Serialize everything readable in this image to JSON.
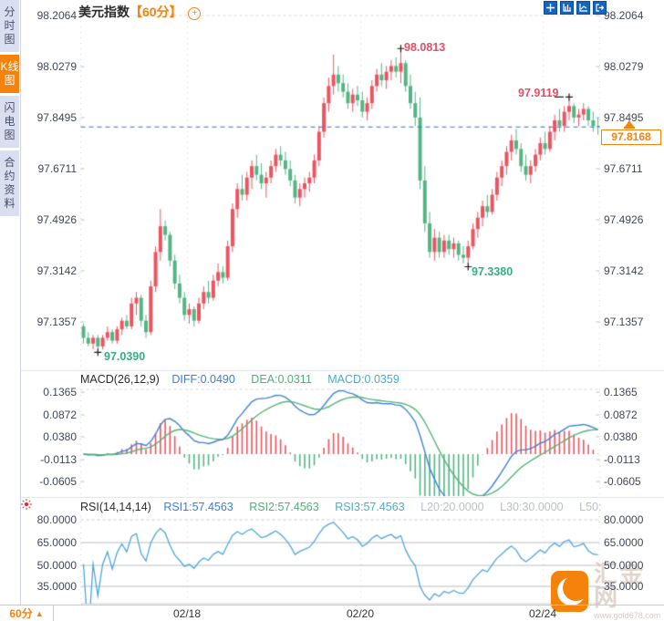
{
  "sidebar": {
    "items": [
      {
        "label": "分时图",
        "active": false
      },
      {
        "label": "K线图",
        "active": true
      },
      {
        "label": "闪电图",
        "active": false
      },
      {
        "label": "合约资料",
        "active": false
      }
    ]
  },
  "header": {
    "symbol": "美元指数",
    "period": "【60分】",
    "add_icon": "⊕"
  },
  "toolbar": {
    "buttons": [
      "pan",
      "axis-scale",
      "axis-style",
      "exit-fullscreen"
    ]
  },
  "price_axis": {
    "labels": [
      "98.2064",
      "98.0279",
      "97.8495",
      "97.6711",
      "97.4926",
      "97.3142",
      "97.1357"
    ],
    "current": "97.8168"
  },
  "annotations": {
    "high": "98.0813",
    "high2": "97.9119",
    "low": "97.0390",
    "low2": "97.3380"
  },
  "macd": {
    "name": "MACD(26,12,9)",
    "diff_label": "DIFF:0.0490",
    "dea_label": "DEA:0.0311",
    "macd_label": "MACD:0.0359",
    "axis": [
      "0.1365",
      "0.0872",
      "0.0380",
      "-0.0113",
      "-0.0605"
    ]
  },
  "rsi": {
    "name": "RSI(14,14,14)",
    "rsi1": "RSI1:57.4563",
    "rsi2": "RSI2:57.4563",
    "rsi3": "RSI3:57.4563",
    "l20": "L20:20.0000",
    "l30": "L30:30.0000",
    "l50": "L50:",
    "axis": [
      "80.0000",
      "65.0000",
      "50.0000",
      "35.0000"
    ]
  },
  "time_axis": {
    "period": "60分",
    "arrow": "▲",
    "labels": [
      "02/18",
      "02/20",
      "02/24"
    ]
  },
  "watermark": {
    "name": "汇金网",
    "url": "www.gold678.com"
  },
  "colors": {
    "up": "#ec5460",
    "down": "#54b584",
    "diff_line": "#3f83d6",
    "dea_line": "#55b377",
    "rsi_line": "#4ea6dc",
    "price_line": "#1f7ad4",
    "accent": "#f5820b",
    "tab_bg": "#d9dff0",
    "annotation_up": "#e25064",
    "annotation_down": "#33af85"
  },
  "chart_data": {
    "type": "candlestick",
    "title": "美元指数 60分 K线图",
    "current_price": 97.8168,
    "y_axis_ticks": [
      98.2064,
      98.0279,
      97.8495,
      97.6711,
      97.4926,
      97.3142,
      97.1357
    ],
    "x_axis_dates": [
      "02/18",
      "02/20",
      "02/24"
    ],
    "markers": [
      {
        "index": 3,
        "price": 97.039,
        "label": "97.0390",
        "type": "low"
      },
      {
        "index": 66,
        "price": 98.0813,
        "label": "98.0813",
        "type": "high"
      },
      {
        "index": 80,
        "price": 97.338,
        "label": "97.3380",
        "type": "low"
      },
      {
        "index": 101,
        "price": 97.9119,
        "label": "97.9119",
        "type": "high2"
      }
    ],
    "indicators": {
      "macd": {
        "params": [
          26,
          12,
          9
        ],
        "diff": 0.049,
        "dea": 0.0311,
        "macd": 0.0359,
        "axis_ticks": [
          0.1365,
          0.0872,
          0.038,
          -0.0113,
          -0.0605
        ]
      },
      "rsi": {
        "params": [
          14,
          14,
          14
        ],
        "rsi1": 57.4563,
        "rsi2": 57.4563,
        "rsi3": 57.4563,
        "levels": [
          20,
          30,
          50
        ],
        "axis_ticks": [
          80,
          65,
          50,
          35
        ]
      }
    },
    "candles": [
      [
        97.12,
        97.13,
        97.06,
        97.08
      ],
      [
        97.08,
        97.1,
        97.05,
        97.06
      ],
      [
        97.06,
        97.09,
        97.04,
        97.08
      ],
      [
        97.08,
        97.09,
        97.039,
        97.05
      ],
      [
        97.05,
        97.09,
        97.04,
        97.08
      ],
      [
        97.08,
        97.12,
        97.07,
        97.1
      ],
      [
        97.1,
        97.11,
        97.06,
        97.07
      ],
      [
        97.07,
        97.12,
        97.06,
        97.11
      ],
      [
        97.11,
        97.15,
        97.09,
        97.14
      ],
      [
        97.14,
        97.16,
        97.11,
        97.12
      ],
      [
        97.12,
        97.22,
        97.11,
        97.2
      ],
      [
        97.2,
        97.24,
        97.16,
        97.22
      ],
      [
        97.22,
        97.23,
        97.12,
        97.14
      ],
      [
        97.14,
        97.16,
        97.08,
        97.1
      ],
      [
        97.1,
        97.28,
        97.09,
        97.26
      ],
      [
        97.26,
        97.4,
        97.24,
        97.38
      ],
      [
        97.38,
        97.53,
        97.35,
        97.47
      ],
      [
        97.47,
        97.49,
        97.42,
        97.44
      ],
      [
        97.44,
        97.45,
        97.33,
        97.35
      ],
      [
        97.35,
        97.37,
        97.25,
        97.27
      ],
      [
        97.27,
        97.3,
        97.2,
        97.22
      ],
      [
        97.22,
        97.24,
        97.14,
        97.16
      ],
      [
        97.16,
        97.2,
        97.13,
        97.18
      ],
      [
        97.18,
        97.19,
        97.12,
        97.14
      ],
      [
        97.14,
        97.22,
        97.13,
        97.2
      ],
      [
        97.2,
        97.26,
        97.18,
        97.24
      ],
      [
        97.24,
        97.28,
        97.2,
        97.22
      ],
      [
        97.22,
        97.3,
        97.21,
        97.28
      ],
      [
        97.28,
        97.34,
        97.26,
        97.31
      ],
      [
        97.31,
        97.33,
        97.27,
        97.29
      ],
      [
        97.29,
        97.42,
        97.28,
        97.4
      ],
      [
        97.4,
        97.55,
        97.38,
        97.53
      ],
      [
        97.53,
        97.62,
        97.5,
        97.6
      ],
      [
        97.6,
        97.65,
        97.56,
        97.58
      ],
      [
        97.58,
        97.66,
        97.56,
        97.64
      ],
      [
        97.64,
        97.7,
        97.6,
        97.68
      ],
      [
        97.68,
        97.72,
        97.63,
        97.65
      ],
      [
        97.65,
        97.69,
        97.6,
        97.62
      ],
      [
        97.62,
        97.66,
        97.57,
        97.64
      ],
      [
        97.64,
        97.7,
        97.62,
        97.68
      ],
      [
        97.68,
        97.74,
        97.66,
        97.72
      ],
      [
        97.72,
        97.75,
        97.68,
        97.7
      ],
      [
        97.7,
        97.73,
        97.65,
        97.67
      ],
      [
        97.67,
        97.7,
        97.61,
        97.63
      ],
      [
        97.63,
        97.65,
        97.55,
        97.57
      ],
      [
        97.57,
        97.62,
        97.54,
        97.6
      ],
      [
        97.6,
        97.64,
        97.57,
        97.62
      ],
      [
        97.62,
        97.66,
        97.59,
        97.64
      ],
      [
        97.64,
        97.72,
        97.62,
        97.7
      ],
      [
        97.7,
        97.82,
        97.68,
        97.8
      ],
      [
        97.8,
        97.92,
        97.78,
        97.9
      ],
      [
        97.9,
        97.99,
        97.87,
        97.96
      ],
      [
        97.96,
        98.07,
        97.93,
        98.0
      ],
      [
        98.0,
        98.03,
        97.94,
        97.97
      ],
      [
        97.97,
        98.0,
        97.92,
        97.94
      ],
      [
        97.94,
        97.97,
        97.88,
        97.9
      ],
      [
        97.9,
        97.95,
        97.87,
        97.93
      ],
      [
        97.93,
        97.96,
        97.89,
        97.91
      ],
      [
        97.91,
        97.94,
        97.85,
        97.87
      ],
      [
        97.87,
        97.92,
        97.84,
        97.9
      ],
      [
        97.9,
        97.98,
        97.88,
        97.96
      ],
      [
        97.96,
        98.02,
        97.94,
        98.0
      ],
      [
        98.0,
        98.04,
        97.96,
        97.98
      ],
      [
        97.98,
        98.03,
        97.95,
        98.01
      ],
      [
        98.01,
        98.05,
        97.98,
        98.03
      ],
      [
        98.03,
        98.06,
        97.99,
        98.01
      ],
      [
        98.01,
        98.0813,
        97.97,
        98.04
      ],
      [
        98.04,
        98.05,
        97.94,
        97.96
      ],
      [
        97.96,
        98.0,
        97.88,
        97.9
      ],
      [
        97.9,
        97.94,
        97.82,
        97.85
      ],
      [
        97.85,
        97.92,
        97.6,
        97.63
      ],
      [
        97.63,
        97.68,
        97.45,
        97.48
      ],
      [
        97.48,
        97.52,
        97.36,
        97.38
      ],
      [
        97.38,
        97.46,
        97.35,
        97.43
      ],
      [
        97.43,
        97.45,
        97.36,
        97.38
      ],
      [
        97.38,
        97.44,
        97.36,
        97.42
      ],
      [
        97.42,
        97.44,
        97.37,
        97.39
      ],
      [
        97.39,
        97.43,
        97.36,
        97.41
      ],
      [
        97.41,
        97.42,
        97.35,
        97.37
      ],
      [
        97.37,
        97.4,
        97.34,
        97.36
      ],
      [
        97.36,
        97.42,
        97.338,
        97.4
      ],
      [
        97.4,
        97.48,
        97.39,
        97.46
      ],
      [
        97.46,
        97.52,
        97.43,
        97.5
      ],
      [
        97.5,
        97.56,
        97.47,
        97.54
      ],
      [
        97.54,
        97.58,
        97.5,
        97.52
      ],
      [
        97.52,
        97.6,
        97.51,
        97.58
      ],
      [
        97.58,
        97.66,
        97.56,
        97.64
      ],
      [
        97.64,
        97.7,
        97.61,
        97.68
      ],
      [
        97.68,
        97.75,
        97.65,
        97.73
      ],
      [
        97.73,
        97.79,
        97.7,
        97.77
      ],
      [
        97.77,
        97.81,
        97.72,
        97.74
      ],
      [
        97.74,
        97.76,
        97.66,
        97.68
      ],
      [
        97.68,
        97.72,
        97.63,
        97.65
      ],
      [
        97.65,
        97.7,
        97.62,
        97.68
      ],
      [
        97.68,
        97.74,
        97.66,
        97.72
      ],
      [
        97.72,
        97.78,
        97.7,
        97.76
      ],
      [
        97.76,
        97.8,
        97.72,
        97.74
      ],
      [
        97.74,
        97.82,
        97.73,
        97.8
      ],
      [
        97.8,
        97.86,
        97.77,
        97.84
      ],
      [
        97.84,
        97.88,
        97.8,
        97.82
      ],
      [
        97.82,
        97.89,
        97.8,
        97.87
      ],
      [
        97.87,
        97.9119,
        97.84,
        97.89
      ],
      [
        97.89,
        97.9,
        97.83,
        97.85
      ],
      [
        97.85,
        97.88,
        97.82,
        97.86
      ],
      [
        97.86,
        97.9,
        97.84,
        97.88
      ],
      [
        97.88,
        97.89,
        97.82,
        97.84
      ],
      [
        97.84,
        97.87,
        97.8,
        97.82
      ],
      [
        97.82,
        97.85,
        97.79,
        97.8168
      ]
    ]
  }
}
